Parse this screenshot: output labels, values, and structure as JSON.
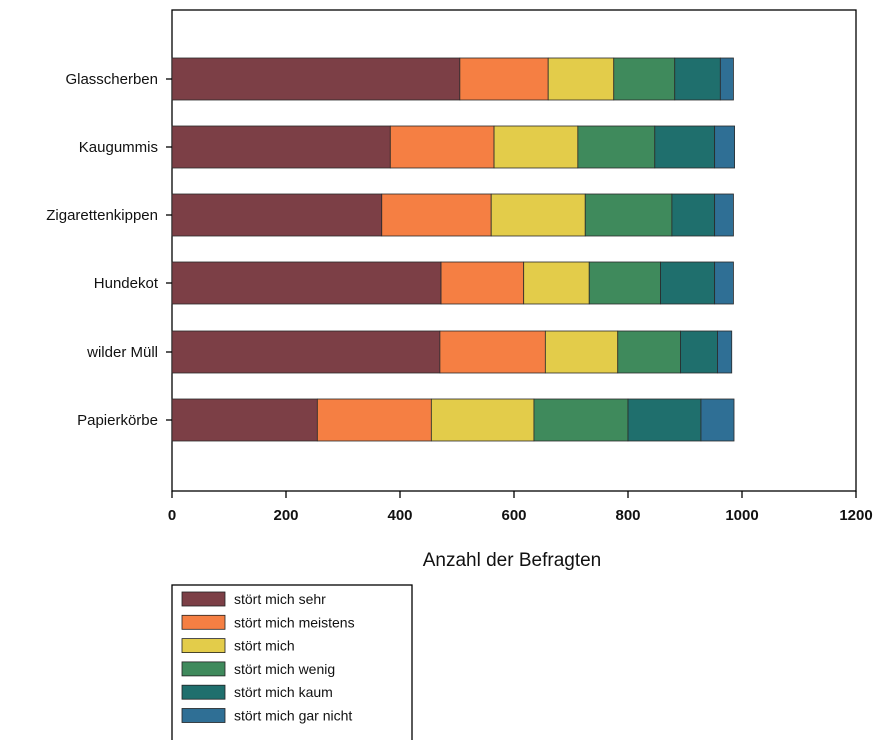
{
  "chart_data": {
    "type": "bar",
    "orientation": "horizontal",
    "stacked": true,
    "title": "",
    "xlabel": "Anzahl der Befragten",
    "ylabel": "",
    "xlim": [
      0,
      1200
    ],
    "xticks": [
      "0",
      "200",
      "400",
      "600",
      "800",
      "1000",
      "1200"
    ],
    "grid": false,
    "legend_position": "bottom-left",
    "categories": [
      "Glasscherben",
      "Kaugummis",
      "Zigarettenkippen",
      "Hundekot",
      "wilder Müll",
      "Papierkörbe"
    ],
    "series": [
      {
        "name": "stört mich sehr",
        "color": "#7c3f46",
        "values": [
          505,
          383,
          368,
          472,
          470,
          255
        ]
      },
      {
        "name": "stört mich meistens",
        "color": "#f57f43",
        "values": [
          155,
          182,
          192,
          145,
          185,
          200
        ]
      },
      {
        "name": "stört mich",
        "color": "#e3cc4a",
        "values": [
          115,
          147,
          165,
          115,
          127,
          180
        ]
      },
      {
        "name": "stört mich wenig",
        "color": "#3f8a5c",
        "values": [
          107,
          135,
          152,
          125,
          110,
          165
        ]
      },
      {
        "name": "stört mich kaum",
        "color": "#1f6f6d",
        "values": [
          80,
          105,
          75,
          95,
          65,
          128
        ]
      },
      {
        "name": "stört mich gar nicht",
        "color": "#2f6f95",
        "values": [
          23,
          35,
          33,
          33,
          25,
          58
        ]
      }
    ]
  }
}
